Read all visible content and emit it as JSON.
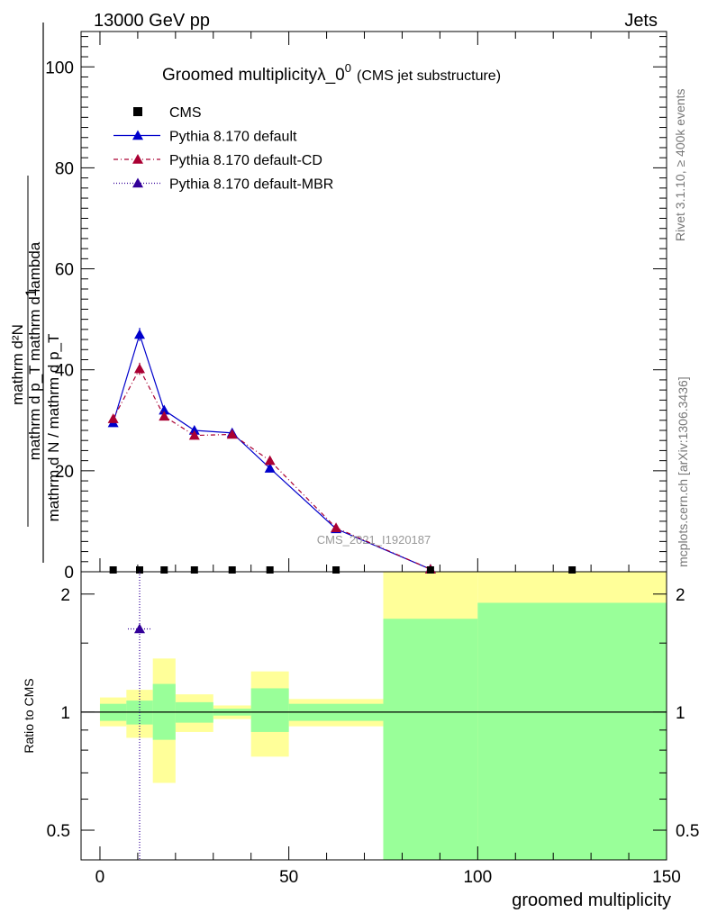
{
  "chart_data": {
    "type": "line",
    "header": {
      "left": "13000 GeV pp",
      "right": "Jets"
    },
    "title_main": "Groomed multiplicityλ_0",
    "title_sup": "0",
    "title_sub": "(CMS jet substructure)",
    "ylabel_num": "mathrm d²N",
    "ylabel_den": "mathrm d p_T mathrm d lambda",
    "ylabel_den_sub": "T",
    "ylabel_frac_num": "1",
    "ylabel_frac_den": "mathrm d N / mathrm d p_T",
    "ylabel_frac_den_sub": "T",
    "xlabel": "groomed multiplicity",
    "ratio_ylabel": "Ratio to CMS",
    "watermark": "CMS_2021_I1920187",
    "side_top": "Rivet 3.1.10, ≥ 400k events",
    "side_bottom": "mcplots.cern.ch [arXiv:1306.3436]",
    "xlim": [
      -5,
      150
    ],
    "ylim": [
      0,
      107
    ],
    "ratio_ylim_log": [
      0.42,
      2.28
    ],
    "xticks": [
      0,
      50,
      100,
      150
    ],
    "yticks": [
      0,
      20,
      40,
      60,
      80,
      100
    ],
    "ratio_ticks": [
      0.5,
      1,
      2
    ],
    "bin_edges": [
      0,
      7,
      14,
      20,
      30,
      40,
      50,
      75,
      100,
      150
    ],
    "legend": [
      {
        "name": "CMS",
        "color": "#000000",
        "marker": "square",
        "dash": ""
      },
      {
        "name": "Pythia 8.170 default",
        "color": "#0000cc",
        "marker": "triangle",
        "dash": ""
      },
      {
        "name": "Pythia 8.170 default-CD",
        "color": "#aa0033",
        "marker": "triangle",
        "dash": "5,3,1,3"
      },
      {
        "name": "Pythia 8.170 default-MBR",
        "color": "#330099",
        "marker": "triangle",
        "dash": "1,2"
      }
    ],
    "cms": {
      "x": [
        3.5,
        10.5,
        17,
        25,
        35,
        45,
        62.5,
        87.5,
        125
      ],
      "y": [
        0,
        0,
        0,
        0,
        0,
        0,
        0,
        0,
        0
      ]
    },
    "series": [
      {
        "name": "Pythia 8.170 default",
        "x": [
          3.5,
          10.5,
          17,
          25,
          35,
          45,
          62.5,
          87.5
        ],
        "y": [
          29.5,
          47.0,
          32.0,
          28.0,
          27.5,
          20.5,
          8.5,
          0.5
        ],
        "err": [
          0.7,
          1.3,
          0.8,
          0.8,
          0.7,
          0.6,
          0.4,
          0.1
        ]
      },
      {
        "name": "Pythia 8.170 default-CD",
        "x": [
          3.5,
          10.5,
          17,
          25,
          35,
          45,
          62.5,
          87.5
        ],
        "y": [
          30.3,
          40.2,
          30.8,
          27.0,
          27.2,
          22.0,
          8.7,
          0.5
        ],
        "err": [
          0.7,
          1.2,
          0.8,
          0.8,
          0.7,
          0.6,
          0.4,
          0.1
        ]
      }
    ],
    "ratio_mbr": {
      "x": 10.5,
      "y": 1.63
    },
    "yellow_band": [
      {
        "lo": 0.92,
        "hi": 1.09
      },
      {
        "lo": 0.86,
        "hi": 1.14
      },
      {
        "lo": 0.66,
        "hi": 1.37
      },
      {
        "lo": 0.89,
        "hi": 1.11
      },
      {
        "lo": 0.96,
        "hi": 1.04
      },
      {
        "lo": 0.77,
        "hi": 1.27
      },
      {
        "lo": 0.92,
        "hi": 1.08
      },
      {
        "lo": 0.42,
        "hi": 2.28
      },
      {
        "lo": 0.42,
        "hi": 2.28
      }
    ],
    "green_band": [
      {
        "lo": 0.95,
        "hi": 1.05
      },
      {
        "lo": 0.93,
        "hi": 1.07
      },
      {
        "lo": 0.85,
        "hi": 1.18
      },
      {
        "lo": 0.94,
        "hi": 1.06
      },
      {
        "lo": 0.98,
        "hi": 1.02
      },
      {
        "lo": 0.89,
        "hi": 1.15
      },
      {
        "lo": 0.95,
        "hi": 1.05
      },
      {
        "lo": 0.42,
        "hi": 1.73
      },
      {
        "lo": 0.42,
        "hi": 1.9
      }
    ]
  }
}
